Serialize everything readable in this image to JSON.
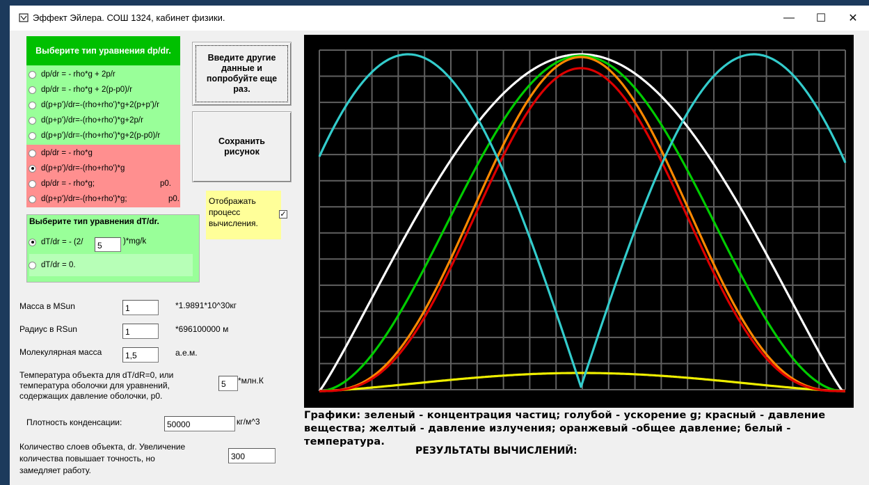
{
  "window": {
    "title": "Эффект Эйлера. СОШ 1324, кабинет физики.",
    "minimize": "—",
    "maximize": "☐",
    "close": "✕"
  },
  "dp_panel": {
    "header": "Выберите тип уравнения dp/dr.",
    "options": [
      {
        "label": "dp/dr = - rho*g + 2p/r",
        "selected": false
      },
      {
        "label": "dp/dr = - rho*g + 2(p-p0)/r",
        "selected": false
      },
      {
        "label": "d(p+p')/dr=-(rho+rho')*g+2(p+p')/r",
        "selected": false
      },
      {
        "label": "d(p+p')/dr=-(rho+rho')*g+2p/r",
        "selected": false
      },
      {
        "label": "d(p+p')/dr=-(rho+rho')*g+2(p-p0)/r",
        "selected": false
      },
      {
        "label": "dp/dr = - rho*g",
        "selected": false
      },
      {
        "label": "d(p+p')/dr=-(rho+rho')*g",
        "selected": true
      },
      {
        "label": "dp/dr = - rho*g;",
        "suffix": "p0.",
        "selected": false
      },
      {
        "label": "d(p+p')/dr=-(rho+rho')*g;",
        "suffix": "p0.",
        "selected": false
      }
    ]
  },
  "dt_panel": {
    "header": "Выберите тип уравнения dT/dr.",
    "option1_prefix": "dT/dr = - (2/",
    "option1_value": "5",
    "option1_suffix": ")*mg/k",
    "option2": "dT/dr = 0."
  },
  "buttons": {
    "enter": "Введите другие данные и попробуйте еще раз.",
    "save": "Сохранить рисунок"
  },
  "show_process": {
    "label": "Отображать процесс вычисления.",
    "checked": "✓"
  },
  "fields": {
    "mass": {
      "label": "Масса в MSun",
      "value": "1",
      "unit": "*1.9891*10^30кг"
    },
    "radius": {
      "label": "Радиус в RSun",
      "value": "1",
      "unit": "*696100000 м"
    },
    "molar": {
      "label": "Молекулярная масса",
      "value": "1,5",
      "unit": "а.е.м."
    },
    "temp": {
      "label_line1": "Температура объекта для dT/dR=0, или",
      "label_line2": "температура оболочки для уравнений,",
      "label_line3": "содержащих давление оболочки, p0.",
      "value": "5",
      "unit": "*млн.К"
    },
    "density": {
      "label": "Плотность конденсации:",
      "value": "50000",
      "unit": "кг/м^3"
    },
    "layers": {
      "label_line1": "Количество слоев объекта, dr. Увеличение",
      "label_line2": "количества повышает точность, но",
      "label_line3": "замедляет работу.",
      "value": "300"
    }
  },
  "legend": {
    "line1": "Графики: зеленый - концентрация частиц; голубой - ускорение g; красный - давление",
    "line2": "вещества; желтый - давление излучения; оранжевый -общее давление; белый -",
    "line3": "температура.",
    "results": "РЕЗУЛЬТАТЫ ВЫЧИСЛЕНИЙ:"
  },
  "colors": {
    "green": "#00cc00",
    "cyan": "#33cccc",
    "red": "#dd0000",
    "yellow": "#eeee00",
    "orange": "#ff8800",
    "white": "#ffffff",
    "grid": "#606060"
  }
}
